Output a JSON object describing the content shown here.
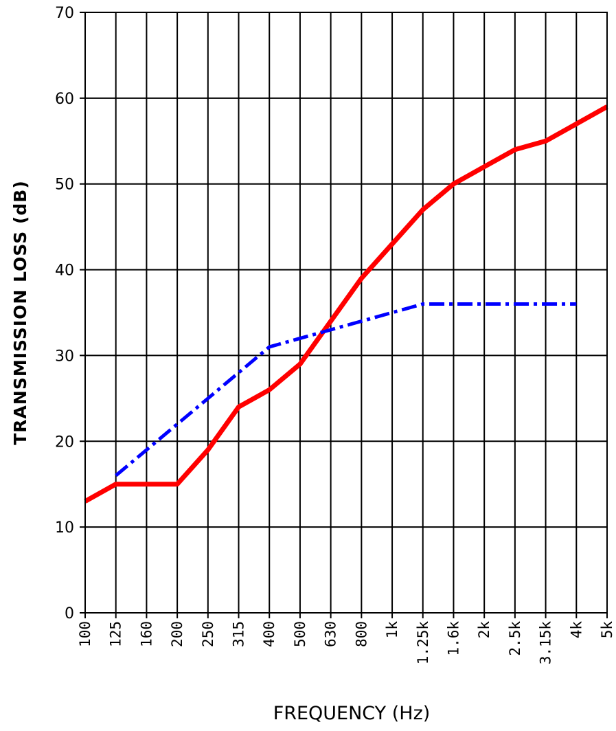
{
  "chart_data": {
    "type": "line",
    "title": "",
    "xlabel": "FREQUENCY (Hz)",
    "ylabel": "TRANSMISSION LOSS (dB)",
    "categories": [
      "100",
      "125",
      "160",
      "200",
      "250",
      "315",
      "400",
      "500",
      "630",
      "800",
      "1k",
      "1.25k",
      "1.6k",
      "2k",
      "2.5k",
      "3.15k",
      "4k",
      "5k"
    ],
    "ylim": [
      0,
      70
    ],
    "yticks": [
      0,
      10,
      20,
      30,
      40,
      50,
      60,
      70
    ],
    "grid": true,
    "legend": "none",
    "series": [
      {
        "color": "#ff0000",
        "style": "solid",
        "values": [
          13,
          15,
          15,
          15,
          19,
          24,
          26,
          29,
          34,
          39,
          43,
          47,
          50,
          52,
          54,
          55,
          57,
          59
        ]
      },
      {
        "color": "#0000ff",
        "style": "dash-dot",
        "values": [
          null,
          16,
          19,
          22,
          25,
          28,
          31,
          32,
          33,
          34,
          35,
          36,
          36,
          36,
          36,
          36,
          36,
          null
        ]
      }
    ]
  }
}
